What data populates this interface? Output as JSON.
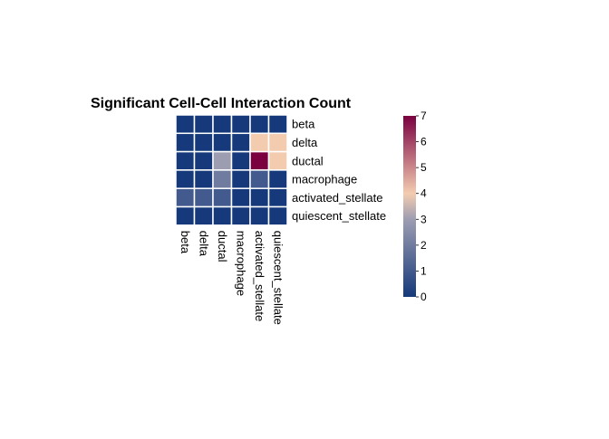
{
  "chart_data": {
    "type": "heatmap",
    "title": "Significant Cell-Cell Interaction Count",
    "rows": [
      "beta",
      "delta",
      "ductal",
      "macrophage",
      "activated_stellate",
      "quiescent_stellate"
    ],
    "cols": [
      "beta",
      "delta",
      "ductal",
      "macrophage",
      "activated_stellate",
      "quiescent_stellate"
    ],
    "values": [
      [
        0,
        0,
        0,
        0,
        0,
        0
      ],
      [
        0,
        0,
        0,
        0,
        4,
        4
      ],
      [
        0,
        0,
        3,
        0,
        7,
        4
      ],
      [
        0,
        0,
        2,
        0,
        1,
        0
      ],
      [
        1,
        1,
        1,
        0,
        0,
        0
      ],
      [
        0,
        0,
        0,
        0,
        0,
        0
      ]
    ],
    "colorbar": {
      "min": 0,
      "max": 7,
      "ticks": [
        0,
        1,
        2,
        3,
        4,
        5,
        6,
        7
      ],
      "colors": [
        "#15397a",
        "#9d9db2",
        "#f3ccb0",
        "#7a0040"
      ]
    },
    "cell_border_color": "#ffffff"
  }
}
